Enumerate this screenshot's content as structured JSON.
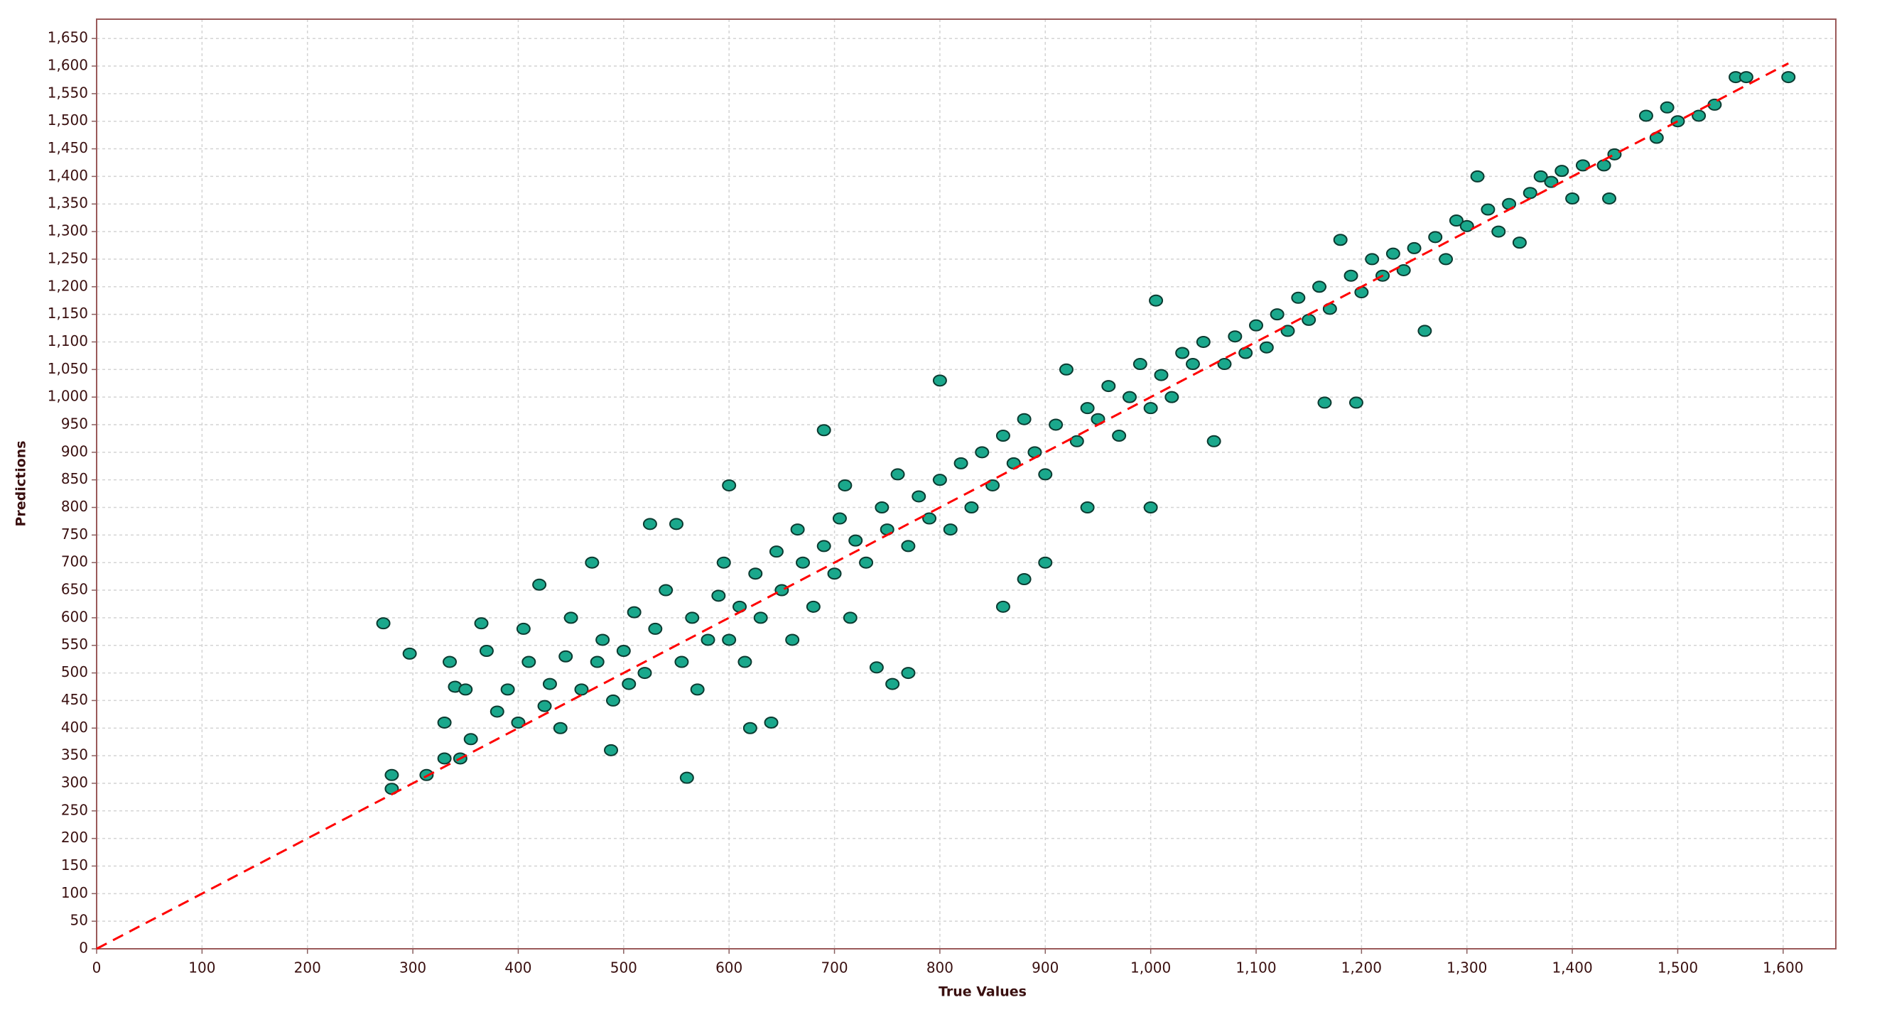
{
  "chart_data": {
    "type": "scatter",
    "x_label": "True Values",
    "y_label": "Predictions",
    "xlim": [
      0,
      1650
    ],
    "ylim": [
      0,
      1685
    ],
    "xticks": [
      0,
      100,
      200,
      300,
      400,
      500,
      600,
      700,
      800,
      900,
      {
        "value": 1000,
        "label": "1,000"
      },
      {
        "value": 1100,
        "label": "1,100"
      },
      {
        "value": 1200,
        "label": "1,200"
      },
      {
        "value": 1300,
        "label": "1,300"
      },
      {
        "value": 1400,
        "label": "1,400"
      },
      {
        "value": 1500,
        "label": "1,500"
      },
      {
        "value": 1600,
        "label": "1,600"
      }
    ],
    "yticks": [
      0,
      50,
      100,
      150,
      200,
      250,
      300,
      350,
      400,
      450,
      500,
      550,
      600,
      650,
      700,
      750,
      800,
      850,
      900,
      950,
      {
        "value": 1000,
        "label": "1,000"
      },
      {
        "value": 1050,
        "label": "1,050"
      },
      {
        "value": 1100,
        "label": "1,100"
      },
      {
        "value": 1150,
        "label": "1,150"
      },
      {
        "value": 1200,
        "label": "1,200"
      },
      {
        "value": 1250,
        "label": "1,250"
      },
      {
        "value": 1300,
        "label": "1,300"
      },
      {
        "value": 1350,
        "label": "1,350"
      },
      {
        "value": 1400,
        "label": "1,400"
      },
      {
        "value": 1450,
        "label": "1,450"
      },
      {
        "value": 1500,
        "label": "1,500"
      },
      {
        "value": 1550,
        "label": "1,550"
      },
      {
        "value": 1600,
        "label": "1,600"
      },
      {
        "value": 1650,
        "label": "1,650"
      }
    ],
    "grid": true,
    "reference_line": {
      "x": [
        0,
        1605
      ],
      "y": [
        0,
        1605
      ],
      "color": "#ff0000"
    },
    "series": [
      {
        "color": "#1aa88c",
        "x": [
          272,
          297,
          280,
          280,
          313,
          330,
          335,
          340,
          350,
          330,
          345,
          355,
          365,
          370,
          380,
          390,
          400,
          405,
          410,
          420,
          425,
          430,
          440,
          445,
          450,
          460,
          470,
          475,
          480,
          488,
          490,
          500,
          505,
          510,
          520,
          525,
          530,
          540,
          550,
          555,
          560,
          565,
          570,
          580,
          590,
          595,
          600,
          600,
          610,
          615,
          620,
          625,
          630,
          640,
          645,
          650,
          660,
          665,
          670,
          680,
          690,
          690,
          700,
          705,
          710,
          715,
          720,
          730,
          740,
          745,
          750,
          755,
          760,
          770,
          770,
          780,
          790,
          800,
          800,
          810,
          820,
          830,
          840,
          850,
          860,
          860,
          870,
          880,
          880,
          890,
          900,
          900,
          910,
          920,
          930,
          940,
          940,
          950,
          960,
          970,
          980,
          990,
          1000,
          1000,
          1005,
          1010,
          1020,
          1030,
          1040,
          1050,
          1060,
          1070,
          1080,
          1090,
          1100,
          1110,
          1120,
          1130,
          1140,
          1150,
          1160,
          1165,
          1170,
          1180,
          1190,
          1195,
          1200,
          1210,
          1220,
          1230,
          1240,
          1250,
          1260,
          1270,
          1280,
          1290,
          1300,
          1310,
          1320,
          1330,
          1340,
          1350,
          1360,
          1370,
          1380,
          1390,
          1400,
          1410,
          1430,
          1435,
          1440,
          1470,
          1480,
          1490,
          1500,
          1520,
          1535,
          1555,
          1565,
          1605
        ],
        "values": [
          590,
          535,
          315,
          290,
          315,
          345,
          520,
          475,
          470,
          410,
          345,
          380,
          590,
          540,
          430,
          470,
          410,
          580,
          520,
          660,
          440,
          480,
          400,
          530,
          600,
          470,
          700,
          520,
          560,
          360,
          450,
          540,
          480,
          610,
          500,
          770,
          580,
          650,
          770,
          520,
          310,
          600,
          470,
          560,
          640,
          700,
          840,
          560,
          620,
          520,
          400,
          680,
          600,
          410,
          720,
          650,
          560,
          760,
          700,
          620,
          940,
          730,
          680,
          780,
          840,
          600,
          740,
          700,
          510,
          800,
          760,
          480,
          860,
          500,
          730,
          820,
          780,
          1030,
          850,
          760,
          880,
          800,
          900,
          840,
          620,
          930,
          880,
          670,
          960,
          900,
          700,
          860,
          950,
          1050,
          920,
          800,
          980,
          960,
          1020,
          930,
          1000,
          1060,
          800,
          980,
          1175,
          1040,
          1000,
          1080,
          1060,
          1100,
          920,
          1060,
          1110,
          1080,
          1130,
          1090,
          1150,
          1120,
          1180,
          1140,
          1200,
          990,
          1160,
          1285,
          1220,
          990,
          1190,
          1250,
          1220,
          1260,
          1230,
          1270,
          1120,
          1290,
          1250,
          1320,
          1310,
          1400,
          1340,
          1300,
          1350,
          1280,
          1370,
          1400,
          1390,
          1410,
          1360,
          1420,
          1420,
          1360,
          1440,
          1510,
          1470,
          1525,
          1500,
          1510,
          1530,
          1580,
          1580,
          1580
        ]
      }
    ]
  }
}
